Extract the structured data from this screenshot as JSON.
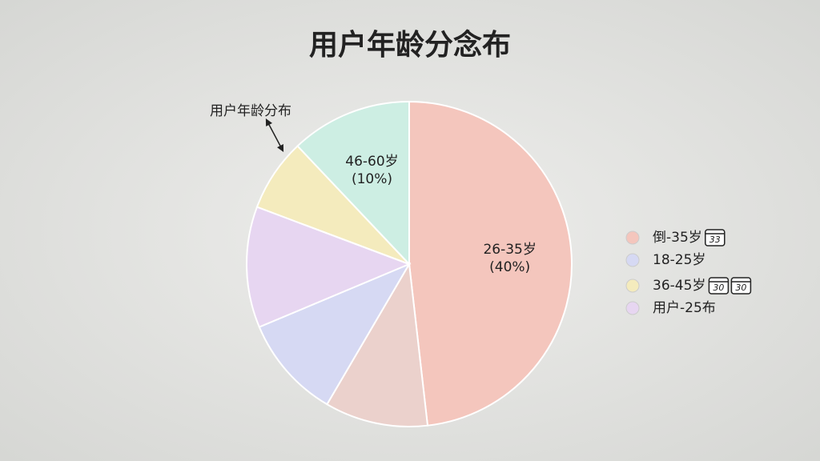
{
  "chart_data": {
    "type": "pie",
    "title": "用户年龄分念布",
    "annotation": "用户年龄分布",
    "categories": [
      "26-35岁",
      null,
      null,
      null,
      null,
      "46-60岁"
    ],
    "values": [
      40,
      8.5,
      8.5,
      10,
      6,
      10
    ],
    "value_labels": [
      "(40%)",
      null,
      null,
      null,
      null,
      "(10%)"
    ],
    "colors": [
      "#f4c6bd",
      "#ebd1cc",
      "#d6d9f3",
      "#e7d6f1",
      "#f4ebbd",
      "#cdeee3"
    ],
    "legend": [
      {
        "name": "倒-35岁",
        "color": "#f4c6bd",
        "icons": [
          "33"
        ]
      },
      {
        "name": "18-25岁",
        "color": "#d6d9f3",
        "icons": []
      },
      {
        "name": "36-45岁",
        "color": "#f4ebbd",
        "icons": [
          "30",
          "30"
        ]
      },
      {
        "name": "用户-25布",
        "color": "#e7d6f1",
        "icons": []
      }
    ],
    "legend_position": "right"
  }
}
